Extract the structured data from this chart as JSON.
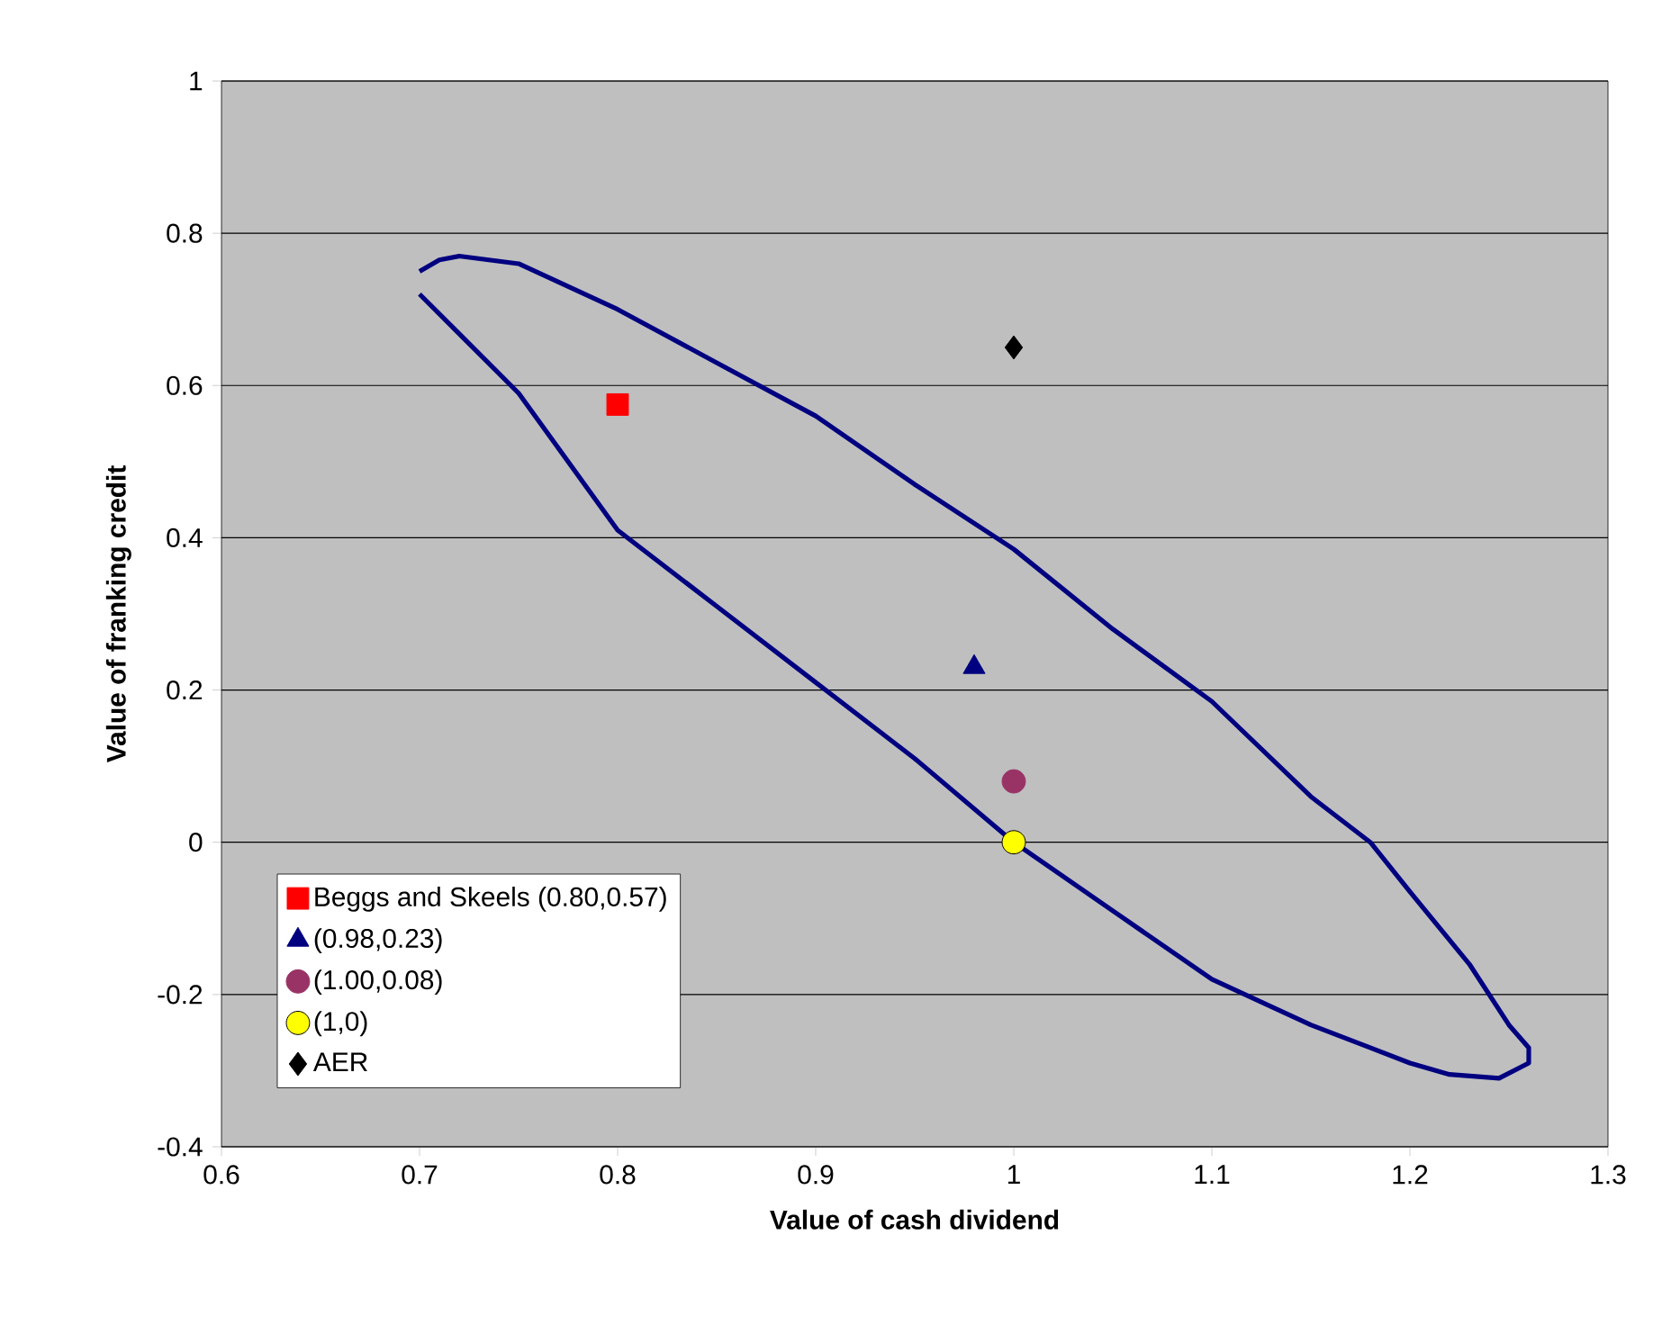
{
  "chart_data": {
    "type": "scatter",
    "xlabel": "Value of cash dividend",
    "ylabel": "Value of franking credit",
    "xlim": [
      0.6,
      1.3
    ],
    "ylim": [
      -0.4,
      1
    ],
    "xticks": [
      0.6,
      0.7,
      0.8,
      0.9,
      1,
      1.1,
      1.2,
      1.3
    ],
    "yticks": [
      -0.4,
      -0.2,
      0,
      0.2,
      0.4,
      0.6,
      0.8,
      1
    ],
    "grid": "y",
    "legend": "bottom left",
    "series": [
      {
        "type": "line",
        "color": "#000080",
        "marker": "none",
        "x": [
          0.7,
          0.71,
          0.72,
          0.75,
          0.8,
          0.85,
          0.9,
          0.95,
          1.0,
          1.05,
          1.1,
          1.15,
          1.18,
          1.2,
          1.23,
          1.25,
          1.26,
          1.26,
          1.245,
          1.22,
          1.2,
          1.15,
          1.1,
          1.05,
          1.0,
          0.95,
          0.9,
          0.85,
          0.8,
          0.75,
          0.7
        ],
        "values": [
          0.75,
          0.765,
          0.77,
          0.76,
          0.7,
          0.63,
          0.56,
          0.47,
          0.385,
          0.28,
          0.185,
          0.06,
          0,
          -0.065,
          -0.16,
          -0.24,
          -0.27,
          -0.29,
          -0.31,
          -0.305,
          -0.29,
          -0.24,
          -0.18,
          -0.09,
          0,
          0.11,
          0.21,
          0.31,
          0.41,
          0.59,
          0.72
        ]
      },
      {
        "name": "Beggs and Skeels (0.80,0.57)",
        "color": "#ff0000",
        "marker": "square",
        "x": [
          0.8
        ],
        "values": [
          0.575
        ]
      },
      {
        "name": "(0.98,0.23)",
        "color": "#000080",
        "marker": "triangle",
        "x": [
          0.98
        ],
        "values": [
          0.23
        ]
      },
      {
        "name": "(1.00,0.08)",
        "color": "#993366",
        "marker": "circle",
        "x": [
          1.0
        ],
        "values": [
          0.08
        ]
      },
      {
        "name": "(1,0)",
        "color": "#ffff00",
        "marker": "circle",
        "x": [
          1
        ],
        "values": [
          0
        ]
      },
      {
        "name": "AER",
        "color": "#000000",
        "marker": "diamond",
        "x": [
          1
        ],
        "values": [
          0.65
        ]
      }
    ]
  }
}
